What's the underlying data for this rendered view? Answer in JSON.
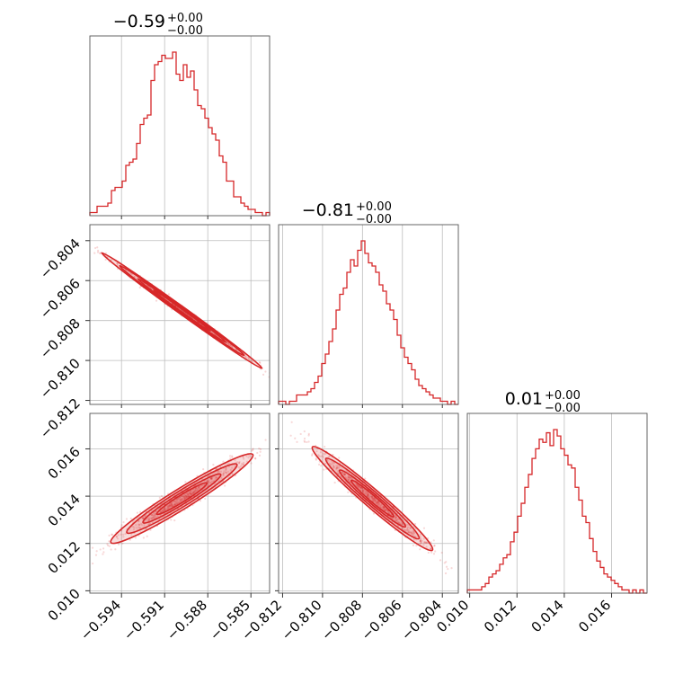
{
  "chart_data": {
    "type": "corner",
    "color": "#d62728",
    "parameters": [
      {
        "title": "−0.59",
        "title_sup": "+0.00",
        "title_sub": "−0.00",
        "range": [
          -0.5962,
          -0.5837
        ],
        "ticks": [
          -0.594,
          -0.591,
          -0.588,
          -0.585
        ],
        "tick_labels": [
          "−0.594",
          "−0.591",
          "−0.588",
          "−0.585"
        ]
      },
      {
        "title": "−0.81",
        "title_sup": "+0.00",
        "title_sub": "−0.00",
        "range": [
          -0.8122,
          -0.8032
        ],
        "ticks": [
          -0.812,
          -0.81,
          -0.808,
          -0.806,
          -0.804
        ],
        "tick_labels": [
          "−0.812",
          "−0.810",
          "−0.808",
          "−0.806",
          "−0.804"
        ]
      },
      {
        "title": "0.01",
        "title_sup": "+0.00",
        "title_sub": "−0.00",
        "range": [
          0.0099,
          0.0175
        ],
        "ticks": [
          0.01,
          0.012,
          0.014,
          0.016
        ],
        "tick_labels": [
          "0.010",
          "0.012",
          "0.014",
          "0.016"
        ]
      }
    ],
    "histograms": [
      {
        "param": 0,
        "counts": [
          1,
          1,
          3,
          3,
          3,
          4,
          8,
          9,
          9,
          11,
          16,
          17,
          18,
          23,
          29,
          31,
          32,
          43,
          48,
          49,
          51,
          50,
          50,
          52,
          45,
          43,
          48,
          44,
          46,
          40,
          35,
          34,
          31,
          28,
          26,
          24,
          19,
          17,
          11,
          11,
          6,
          6,
          4,
          3,
          2,
          2,
          1,
          1,
          0,
          1
        ]
      },
      {
        "param": 1,
        "counts": [
          1,
          1,
          0,
          1,
          1,
          3,
          3,
          3,
          4,
          5,
          7,
          9,
          13,
          16,
          20,
          24,
          30,
          35,
          37,
          42,
          46,
          44,
          49,
          52,
          48,
          45,
          44,
          42,
          38,
          36,
          32,
          30,
          27,
          22,
          18,
          15,
          13,
          11,
          8,
          6,
          5,
          4,
          3,
          2,
          2,
          1,
          1,
          0,
          1,
          0
        ]
      },
      {
        "param": 2,
        "counts": [
          1,
          1,
          1,
          1,
          2,
          3,
          5,
          6,
          7,
          9,
          11,
          12,
          16,
          19,
          24,
          28,
          33,
          37,
          42,
          45,
          48,
          47,
          50,
          46,
          51,
          49,
          45,
          43,
          40,
          39,
          33,
          29,
          24,
          22,
          17,
          13,
          10,
          8,
          6,
          5,
          4,
          3,
          2,
          1,
          1,
          0,
          1,
          0,
          1,
          0
        ]
      }
    ],
    "scatter_pairs": [
      {
        "x": 0,
        "y": 1,
        "center": [
          -0.5898,
          -0.8075
        ],
        "slope": -0.72,
        "major_sd": 0.0026,
        "minor_sd": 4e-05,
        "contours": [
          0.25,
          0.5,
          0.75,
          0.9
        ]
      },
      {
        "x": 0,
        "y": 2,
        "center": [
          -0.5898,
          0.0139
        ],
        "slope": 0.62,
        "major_sd": 0.0023,
        "minor_sd": 0.00018,
        "contours": [
          0.25,
          0.5,
          0.75,
          0.9
        ]
      },
      {
        "x": 1,
        "y": 2,
        "center": [
          -0.8075,
          0.0139
        ],
        "slope": -0.86,
        "major_sd": 0.0014,
        "minor_sd": 0.00017,
        "contours": [
          0.25,
          0.5,
          0.75,
          0.9
        ]
      }
    ],
    "grid": true
  }
}
